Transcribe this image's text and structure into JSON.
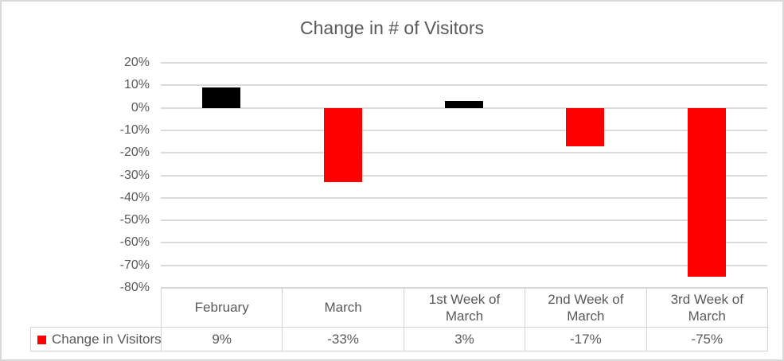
{
  "chart_data": {
    "type": "bar",
    "title": "Change in # of Visitors",
    "categories": [
      "February",
      "March",
      "1st Week of March",
      "2nd Week of March",
      "3rd Week of March"
    ],
    "values": [
      9,
      -33,
      3,
      -17,
      -75
    ],
    "value_labels": [
      "9%",
      "-33%",
      "3%",
      "-17%",
      "-75%"
    ],
    "bar_colors": [
      "#000000",
      "#FF0000",
      "#000000",
      "#FF0000",
      "#FF0000"
    ],
    "series_name": "Change in Visitors",
    "xlabel": "",
    "ylabel": "",
    "ylim": [
      -80,
      20
    ],
    "ytick_step": 10,
    "ytick_labels": [
      "20%",
      "10%",
      "0%",
      "-10%",
      "-20%",
      "-30%",
      "-40%",
      "-50%",
      "-60%",
      "-70%",
      "-80%"
    ],
    "grid": true,
    "legend_position": "data-table-left"
  },
  "legend": {
    "label": "Change in Visitors",
    "swatch_color": "#FF0000"
  },
  "colors": {
    "positive_bar": "#000000",
    "negative_bar": "#FF0000",
    "gridline": "#DBDBDB",
    "text": "#595959",
    "table_border": "#D2D2D2",
    "frame_border": "#D9D9D9",
    "background": "#FFFFFF"
  }
}
